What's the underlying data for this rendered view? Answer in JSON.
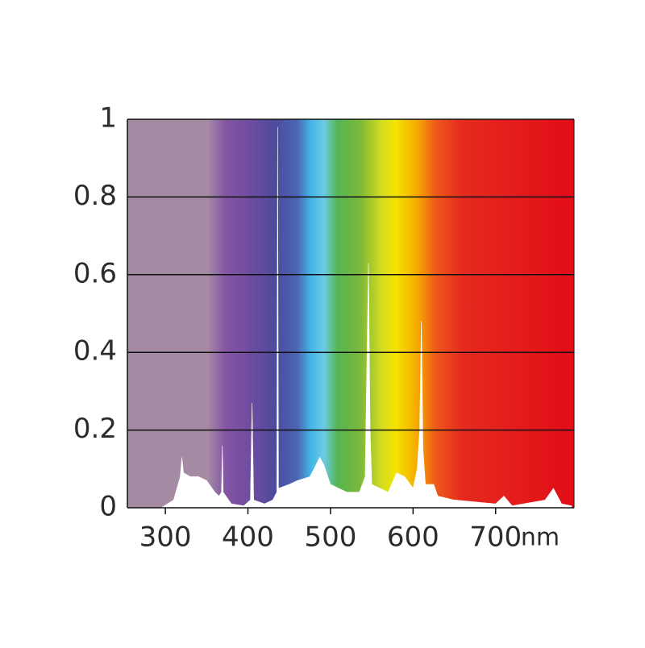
{
  "chart_data": {
    "type": "area",
    "x_label": "nm",
    "x": [
      295,
      310,
      318,
      320,
      322,
      330,
      340,
      350,
      360,
      365,
      368,
      369,
      370,
      380,
      395,
      403,
      405,
      407,
      420,
      430,
      435,
      436,
      437,
      450,
      460,
      475,
      480,
      487,
      492,
      500,
      520,
      535,
      542,
      544,
      546,
      548,
      550,
      560,
      570,
      580,
      590,
      600,
      605,
      608,
      610,
      612,
      615,
      625,
      630,
      650,
      700,
      710,
      720,
      760,
      770,
      780,
      792
    ],
    "values": [
      0,
      0.02,
      0.08,
      0.13,
      0.09,
      0.08,
      0.08,
      0.07,
      0.04,
      0.03,
      0.04,
      0.16,
      0.04,
      0.01,
      0.005,
      0.02,
      0.27,
      0.02,
      0.01,
      0.02,
      0.04,
      0.98,
      0.05,
      0.06,
      0.07,
      0.08,
      0.1,
      0.13,
      0.11,
      0.06,
      0.04,
      0.04,
      0.08,
      0.36,
      0.63,
      0.2,
      0.06,
      0.05,
      0.04,
      0.09,
      0.08,
      0.05,
      0.1,
      0.2,
      0.48,
      0.15,
      0.06,
      0.06,
      0.03,
      0.02,
      0.01,
      0.03,
      0.005,
      0.02,
      0.05,
      0.01,
      0.005
    ],
    "color": "#ffffff",
    "xlim": [
      254,
      795
    ],
    "xticks": [
      300,
      400,
      500,
      600,
      700
    ],
    "ylim": [
      0,
      1
    ],
    "yticks": [
      0,
      0.2,
      0.4,
      0.6,
      0.8,
      1
    ],
    "grid": true
  }
}
